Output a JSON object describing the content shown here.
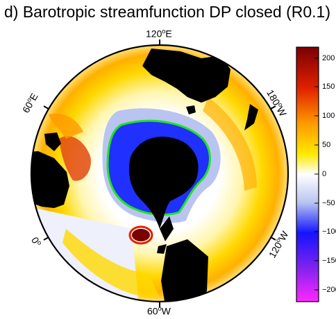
{
  "title": "d) Barotropic streamfunction DP closed (R0.1)",
  "labels": {
    "top": {
      "num": "120",
      "deg": "o",
      "dir": "E"
    },
    "bottom": {
      "num": "60",
      "deg": "o",
      "dir": "W"
    },
    "upper_left": {
      "num": "60",
      "deg": "o",
      "dir": "E"
    },
    "upper_right": {
      "num": "180",
      "deg": "o",
      "dir": "W"
    },
    "lower_left": {
      "num": "0",
      "deg": "o",
      "dir": ""
    },
    "lower_right": {
      "num": "120",
      "deg": "o",
      "dir": "W"
    }
  },
  "colorbar": {
    "ticks": [
      "200",
      "150",
      "100",
      "50",
      "0",
      "−50",
      "−100",
      "−150",
      "−200"
    ],
    "min": -220,
    "max": 220,
    "colors": {
      "max": "#7a0000",
      "high": "#e02000",
      "mid_high": "#ff9a00",
      "low_pos": "#ffe900",
      "zero": "#ffffff",
      "low_neg": "#b9c4f0",
      "mid_neg": "#1414ff",
      "high_neg": "#7a22ee",
      "min": "#ff28ff"
    }
  },
  "map_colors": {
    "land": "#000000",
    "acc_contour": "#1fe41f"
  }
}
